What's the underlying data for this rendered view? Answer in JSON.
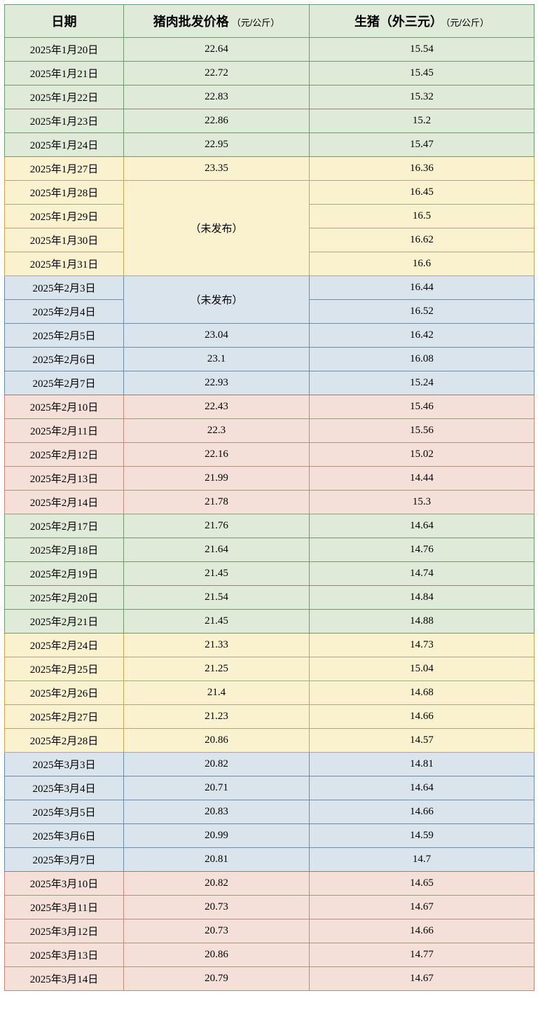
{
  "headers": {
    "date": "日期",
    "price1_main": "猪肉批发价格",
    "price1_unit": "（元/公斤）",
    "price2_main": "生猪（外三元）",
    "price2_unit": "（元/公斤）"
  },
  "not_published": "（未发布）",
  "groups": [
    {
      "cls": "g-green",
      "rows": [
        {
          "date": "2025年1月20日",
          "p1": "22.64",
          "p2": "15.54"
        },
        {
          "date": "2025年1月21日",
          "p1": "22.72",
          "p2": "15.45"
        },
        {
          "date": "2025年1月22日",
          "p1": "22.83",
          "p2": "15.32"
        },
        {
          "date": "2025年1月23日",
          "p1": "22.86",
          "p2": "15.2"
        },
        {
          "date": "2025年1月24日",
          "p1": "22.95",
          "p2": "15.47"
        }
      ]
    },
    {
      "cls": "g-yellow",
      "rows": [
        {
          "date": "2025年1月27日",
          "p1": "23.35",
          "p2": "16.36"
        },
        {
          "date": "2025年1月28日",
          "p1_merge_start": true,
          "p1_merge_span": 4,
          "p2": "16.45"
        },
        {
          "date": "2025年1月29日",
          "p1_merged": true,
          "p2": "16.5"
        },
        {
          "date": "2025年1月30日",
          "p1_merged": true,
          "p2": "16.62"
        },
        {
          "date": "2025年1月31日",
          "p1_merged": true,
          "p2": "16.6"
        }
      ]
    },
    {
      "cls": "g-blue",
      "rows": [
        {
          "date": "2025年2月3日",
          "p1_merge_start": true,
          "p1_merge_span": 2,
          "p2": "16.44"
        },
        {
          "date": "2025年2月4日",
          "p1_merged": true,
          "p2": "16.52"
        },
        {
          "date": "2025年2月5日",
          "p1": "23.04",
          "p2": "16.42"
        },
        {
          "date": "2025年2月6日",
          "p1": "23.1",
          "p2": "16.08"
        },
        {
          "date": "2025年2月7日",
          "p1": "22.93",
          "p2": "15.24"
        }
      ]
    },
    {
      "cls": "g-pink",
      "rows": [
        {
          "date": "2025年2月10日",
          "p1": "22.43",
          "p2": "15.46"
        },
        {
          "date": "2025年2月11日",
          "p1": "22.3",
          "p2": "15.56"
        },
        {
          "date": "2025年2月12日",
          "p1": "22.16",
          "p2": "15.02"
        },
        {
          "date": "2025年2月13日",
          "p1": "21.99",
          "p2": "14.44"
        },
        {
          "date": "2025年2月14日",
          "p1": "21.78",
          "p2": "15.3"
        }
      ]
    },
    {
      "cls": "g-green2",
      "rows": [
        {
          "date": "2025年2月17日",
          "p1": "21.76",
          "p2": "14.64"
        },
        {
          "date": "2025年2月18日",
          "p1": "21.64",
          "p2": "14.76"
        },
        {
          "date": "2025年2月19日",
          "p1": "21.45",
          "p2": "14.74"
        },
        {
          "date": "2025年2月20日",
          "p1": "21.54",
          "p2": "14.84"
        },
        {
          "date": "2025年2月21日",
          "p1": "21.45",
          "p2": "14.88"
        }
      ]
    },
    {
      "cls": "g-yellow",
      "rows": [
        {
          "date": "2025年2月24日",
          "p1": "21.33",
          "p2": "14.73"
        },
        {
          "date": "2025年2月25日",
          "p1": "21.25",
          "p2": "15.04"
        },
        {
          "date": "2025年2月26日",
          "p1": "21.4",
          "p2": "14.68"
        },
        {
          "date": "2025年2月27日",
          "p1": "21.23",
          "p2": "14.66"
        },
        {
          "date": "2025年2月28日",
          "p1": "20.86",
          "p2": "14.57"
        }
      ]
    },
    {
      "cls": "g-blue",
      "rows": [
        {
          "date": "2025年3月3日",
          "p1": "20.82",
          "p2": "14.81"
        },
        {
          "date": "2025年3月4日",
          "p1": "20.71",
          "p2": "14.64"
        },
        {
          "date": "2025年3月5日",
          "p1": "20.83",
          "p2": "14.66"
        },
        {
          "date": "2025年3月6日",
          "p1": "20.99",
          "p2": "14.59"
        },
        {
          "date": "2025年3月7日",
          "p1": "20.81",
          "p2": "14.7"
        }
      ]
    },
    {
      "cls": "g-pink",
      "rows": [
        {
          "date": "2025年3月10日",
          "p1": "20.82",
          "p2": "14.65"
        },
        {
          "date": "2025年3月11日",
          "p1": "20.73",
          "p2": "14.67"
        },
        {
          "date": "2025年3月12日",
          "p1": "20.73",
          "p2": "14.66"
        },
        {
          "date": "2025年3月13日",
          "p1": "20.86",
          "p2": "14.77"
        },
        {
          "date": "2025年3月14日",
          "p1": "20.79",
          "p2": "14.67"
        }
      ]
    }
  ]
}
